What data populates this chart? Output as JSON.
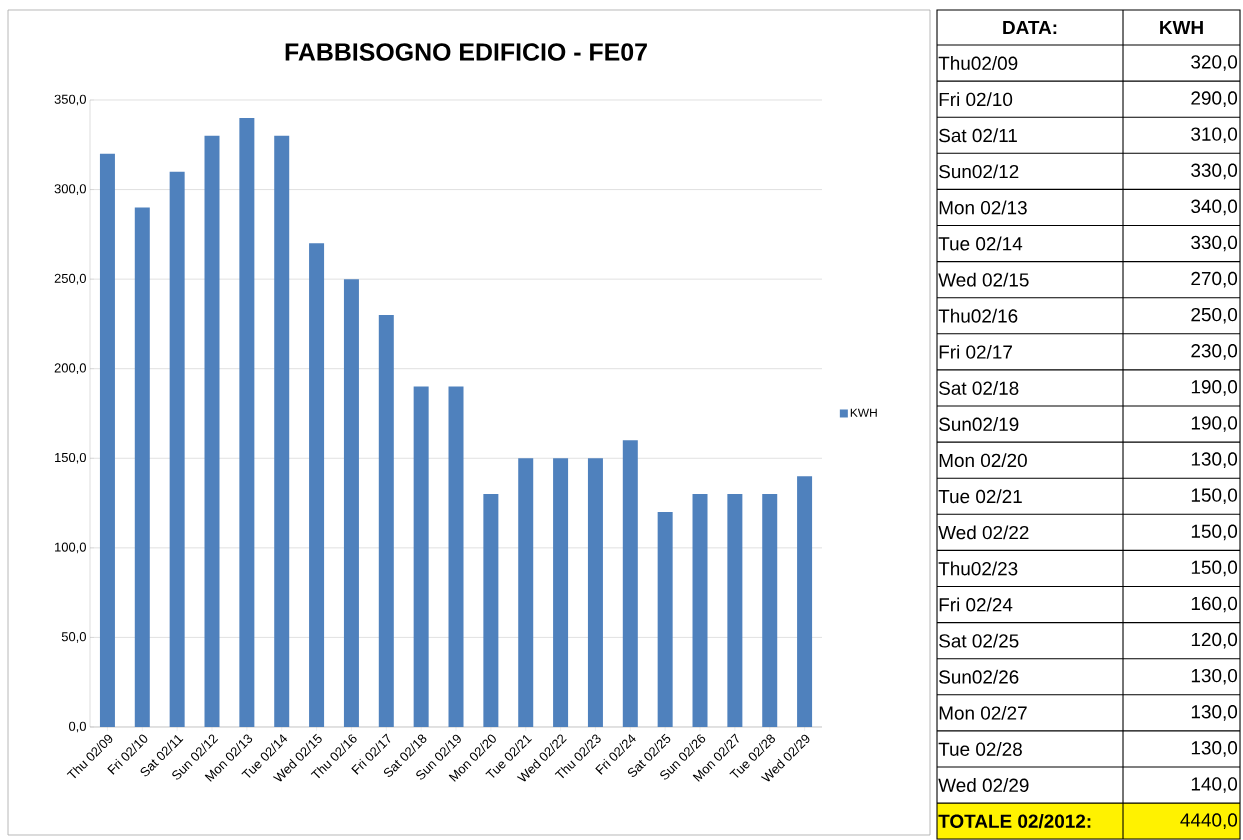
{
  "chart_data": [
    {
      "type": "bar",
      "title": "FABBISOGNO EDIFICIO - FE07",
      "categories": [
        "Thu 02/09",
        "Fri 02/10",
        "Sat 02/11",
        "Sun 02/12",
        "Mon 02/13",
        "Tue 02/14",
        "Wed 02/15",
        "Thu 02/16",
        "Fri 02/17",
        "Sat 02/18",
        "Sun 02/19",
        "Mon 02/20",
        "Tue 02/21",
        "Wed 02/22",
        "Thu 02/23",
        "Fri 02/24",
        "Sat 02/25",
        "Sun 02/26",
        "Mon 02/27",
        "Tue 02/28",
        "Wed 02/29"
      ],
      "series": [
        {
          "name": "KWH",
          "color": "#4f81bd",
          "values": [
            320,
            290,
            310,
            330,
            340,
            330,
            270,
            250,
            230,
            190,
            190,
            130,
            150,
            150,
            150,
            160,
            120,
            130,
            130,
            130,
            140
          ]
        }
      ],
      "ylim": [
        0,
        350
      ],
      "yticks": [
        {
          "value": 0,
          "label": "0,0"
        },
        {
          "value": 50,
          "label": "50,0"
        },
        {
          "value": 100,
          "label": "100,0"
        },
        {
          "value": 150,
          "label": "150,0"
        },
        {
          "value": 200,
          "label": "200,0"
        },
        {
          "value": 250,
          "label": "250,0"
        },
        {
          "value": 300,
          "label": "300,0"
        },
        {
          "value": 350,
          "label": "350,0"
        }
      ],
      "grid": "y",
      "legend": "right"
    },
    {
      "type": "other",
      "annotations": [
        "DATA:",
        "KWH",
        "Thu02/09",
        "320,0",
        "Fri 02/10",
        "290,0",
        "Sat 02/11",
        "310,0",
        "Sun02/12",
        "330,0",
        "Mon 02/13",
        "340,0",
        "Tue 02/14",
        "330,0",
        "Wed 02/15",
        "270,0",
        "Thu02/16",
        "250,0",
        "Fri 02/17",
        "230,0",
        "Sat 02/18",
        "190,0",
        "Sun02/19",
        "190,0",
        "Mon 02/20",
        "130,0",
        "Tue 02/21",
        "150,0",
        "Wed 02/22",
        "150,0",
        "Thu02/23",
        "150,0",
        "Fri 02/24",
        "160,0",
        "Sat 02/25",
        "120,0",
        "Sun02/26",
        "130,0",
        "Mon 02/27",
        "130,0",
        "Tue 02/28",
        "130,0",
        "Wed 02/29",
        "140,0",
        "TOTALE 02/2012:",
        "4440,0"
      ]
    }
  ]
}
